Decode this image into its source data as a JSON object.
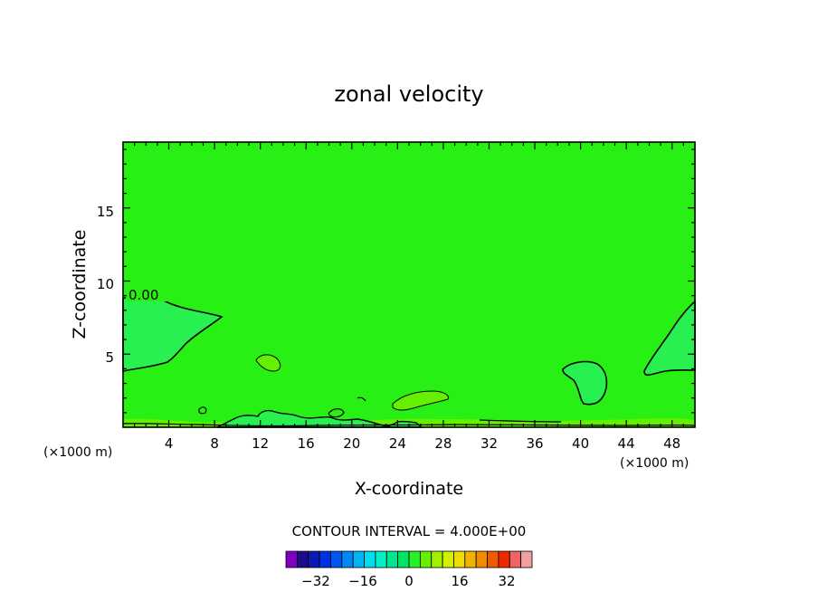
{
  "chart_data": {
    "type": "contour",
    "title": "zonal velocity",
    "xlabel": "X-coordinate",
    "ylabel": "Z-coordinate",
    "x_unit_left": "(×1000 m)",
    "x_unit_right": "(×1000 m)",
    "xlim": [
      0,
      50
    ],
    "ylim": [
      0,
      19.5
    ],
    "x_ticks": [
      "4",
      "8",
      "12",
      "16",
      "20",
      "24",
      "28",
      "32",
      "36",
      "40",
      "44",
      "48"
    ],
    "y_ticks": [
      "5",
      "10",
      "15"
    ],
    "contour_label": "0.00",
    "contour_interval_text": "CONTOUR INTERVAL = 4.000E+00",
    "colorbar": {
      "ticks": [
        "−32",
        "−16",
        "0",
        "16",
        "32"
      ],
      "levels": [
        -40,
        -36,
        -32,
        -28,
        -24,
        -20,
        -16,
        -12,
        -8,
        -4,
        0,
        4,
        8,
        12,
        16,
        20,
        24,
        28,
        32,
        36,
        40
      ],
      "colors": [
        "#8000c0",
        "#1a0a8c",
        "#0a1ab4",
        "#0030e6",
        "#0058f0",
        "#0088f5",
        "#00b4f5",
        "#00dcf0",
        "#00f0c8",
        "#00e690",
        "#00e664",
        "#28f028",
        "#64f000",
        "#a0f000",
        "#d2f000",
        "#f0dc00",
        "#f0b400",
        "#f08c00",
        "#f05a00",
        "#f02800",
        "#f06464",
        "#f0a0a0"
      ]
    },
    "regions": [
      {
        "name": "negative-region-left",
        "sign": "negative",
        "fill": "#28f050",
        "approx_extent": {
          "x": [
            0,
            8.7
          ],
          "z": [
            4.0,
            9.4
          ]
        }
      },
      {
        "name": "negative-region-right",
        "sign": "negative",
        "fill": "#28f050",
        "approx_extent": {
          "x": [
            45.5,
            50
          ],
          "z": [
            3.5,
            8.8
          ]
        }
      },
      {
        "name": "negative-region-center-right",
        "sign": "negative",
        "fill": "#28f050",
        "approx_extent": {
          "x": [
            38.5,
            42.5
          ],
          "z": [
            1.7,
            4.5
          ]
        }
      },
      {
        "name": "positive-region-center",
        "sign": "positive",
        "fill": "#64f000",
        "approx_extent": {
          "x": [
            23,
            28
          ],
          "z": [
            1.3,
            2.5
          ]
        }
      },
      {
        "name": "positive-region-small",
        "sign": "positive",
        "fill": "#64f000",
        "approx_extent": {
          "x": [
            11.8,
            14
          ],
          "z": [
            4.0,
            5.2
          ]
        }
      }
    ],
    "background_fill": "#28f014"
  }
}
